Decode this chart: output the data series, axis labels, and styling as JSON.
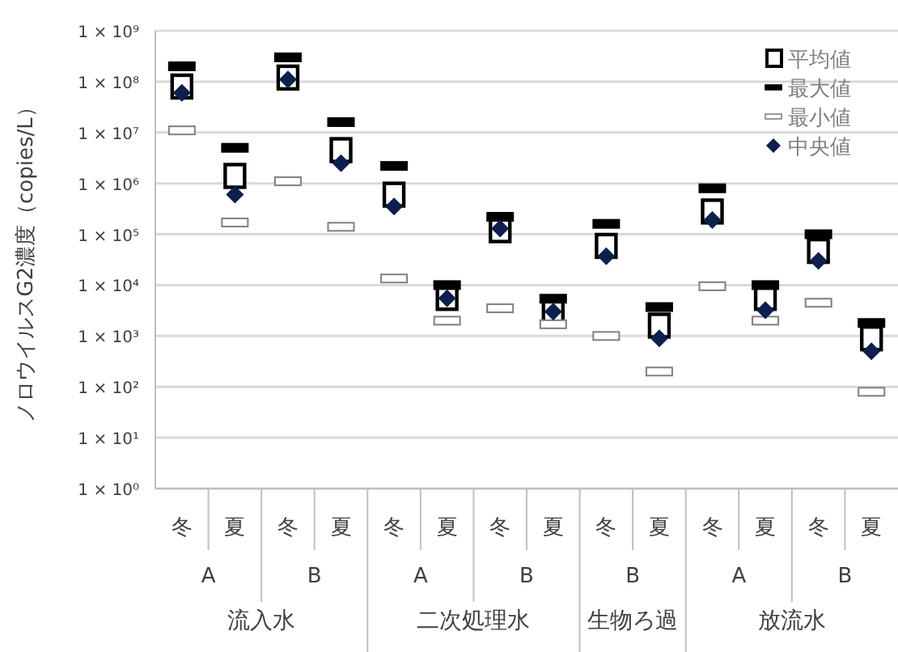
{
  "chart_data": {
    "type": "scatter",
    "ylabel": "ノロウイルスG2濃度（copies/L）",
    "categories": [
      "冬",
      "夏",
      "冬",
      "夏",
      "冬",
      "夏",
      "冬",
      "夏",
      "冬",
      "夏",
      "冬",
      "夏",
      "冬",
      "夏"
    ],
    "annotations": [
      "A",
      "B",
      "A",
      "B",
      "B",
      "A",
      "B",
      "流入水",
      "二次処理水",
      "生物ろ過",
      "放流水"
    ],
    "series": [
      {
        "name": "平均値",
        "color": "#000000",
        "marker": "square",
        "values": [
          80000000,
          1400000,
          120000000,
          4500000,
          600000,
          5600,
          120000,
          3200,
          59000,
          1600,
          280000,
          5600,
          47000,
          900
        ]
      },
      {
        "name": "最大値",
        "color": "#000000",
        "marker": "square",
        "values": [
          200000000,
          5000000,
          300000000,
          16000000,
          2200000,
          10000,
          220000,
          5400,
          160000,
          3700,
          800000,
          10000,
          100000,
          1800
        ]
      },
      {
        "name": "最小値",
        "color": "#ffffff",
        "marker": "square",
        "values": [
          11000000,
          170000,
          1100000,
          140000,
          13500,
          2000,
          3500,
          1700,
          1000,
          200,
          9500,
          2000,
          4500,
          80
        ]
      },
      {
        "name": "中央値",
        "color": "#0d1f4d",
        "marker": "diamond",
        "values": [
          60000000,
          600000,
          110000000,
          2500000,
          350000,
          5500,
          130000,
          3000,
          37000,
          900,
          190000,
          3200,
          30000,
          500
        ]
      }
    ],
    "log": "y",
    "ylim": [
      1,
      1000000000
    ],
    "yticks": [
      {
        "value": 1,
        "label": "1 × 10⁰"
      },
      {
        "value": 10,
        "label": "1 × 10¹"
      },
      {
        "value": 100,
        "label": "1 × 10²"
      },
      {
        "value": 1000,
        "label": "1 × 10³"
      },
      {
        "value": 10000,
        "label": "1 × 10⁴"
      },
      {
        "value": 100000,
        "label": "1 × 10⁵"
      },
      {
        "value": 1000000,
        "label": "1 × 10⁶"
      },
      {
        "value": 10000000,
        "label": "1 × 10⁷"
      },
      {
        "value": 100000000,
        "label": "1 × 10⁸"
      },
      {
        "value": 1000000000,
        "label": "1 × 10⁹"
      }
    ],
    "grid": "y",
    "legend": "top right"
  }
}
